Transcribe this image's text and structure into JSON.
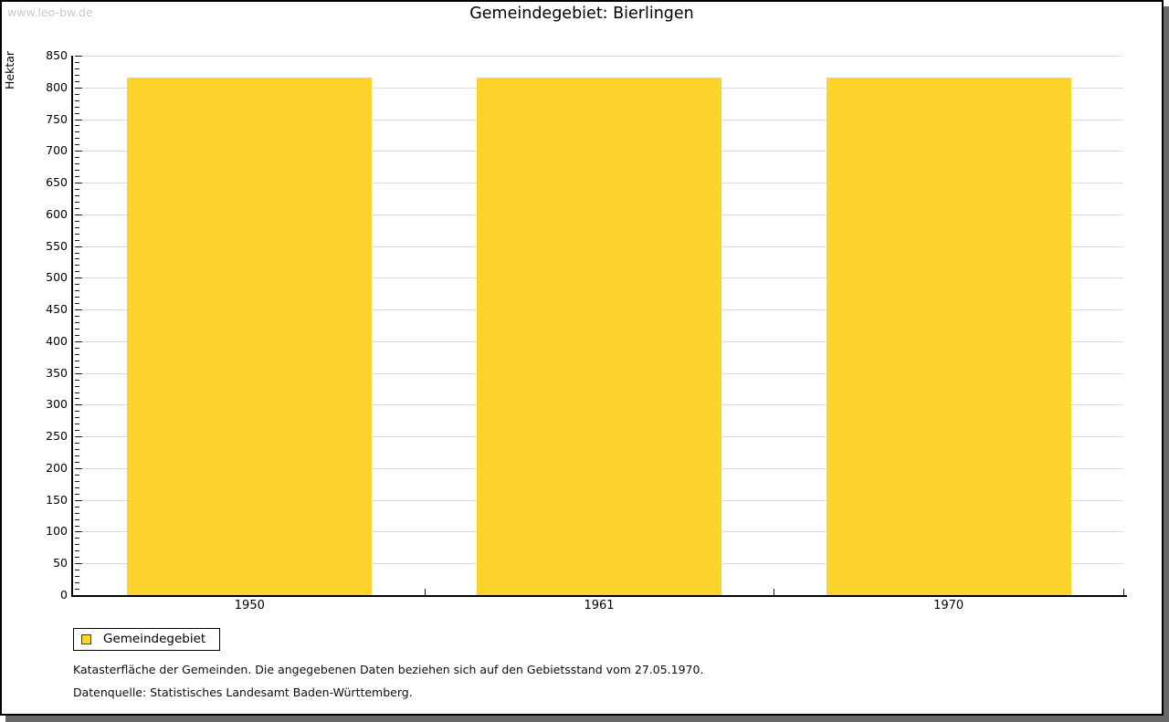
{
  "watermark": "www.leo-bw.de",
  "chart_data": {
    "type": "bar",
    "title": "Gemeindegebiet: Bierlingen",
    "ylabel": "Hektar",
    "xlabel": "",
    "categories": [
      "1950",
      "1961",
      "1970"
    ],
    "series": [
      {
        "name": "Gemeindegebiet",
        "color": "#FCD42C",
        "values": [
          816,
          816,
          816
        ]
      }
    ],
    "ylim": [
      0,
      850
    ],
    "ytick_major_step": 50,
    "ytick_minor_step": 10,
    "grid": "horizontal-major",
    "legend_position": "below-left"
  },
  "legend": {
    "items": [
      {
        "label": "Gemeindegebiet",
        "color": "#FCD42C"
      }
    ]
  },
  "notes": [
    "Katasterfläche der Gemeinden. Die angegebenen Daten beziehen sich auf den Gebietsstand vom 27.05.1970.",
    "Datenquelle: Statistisches Landesamt Baden-Württemberg."
  ],
  "colors": {
    "bar": "#FCD42C",
    "grid": "#DBDBDB",
    "axis": "#000000",
    "shadow": "#696969",
    "watermark": "#C9C9C9"
  }
}
